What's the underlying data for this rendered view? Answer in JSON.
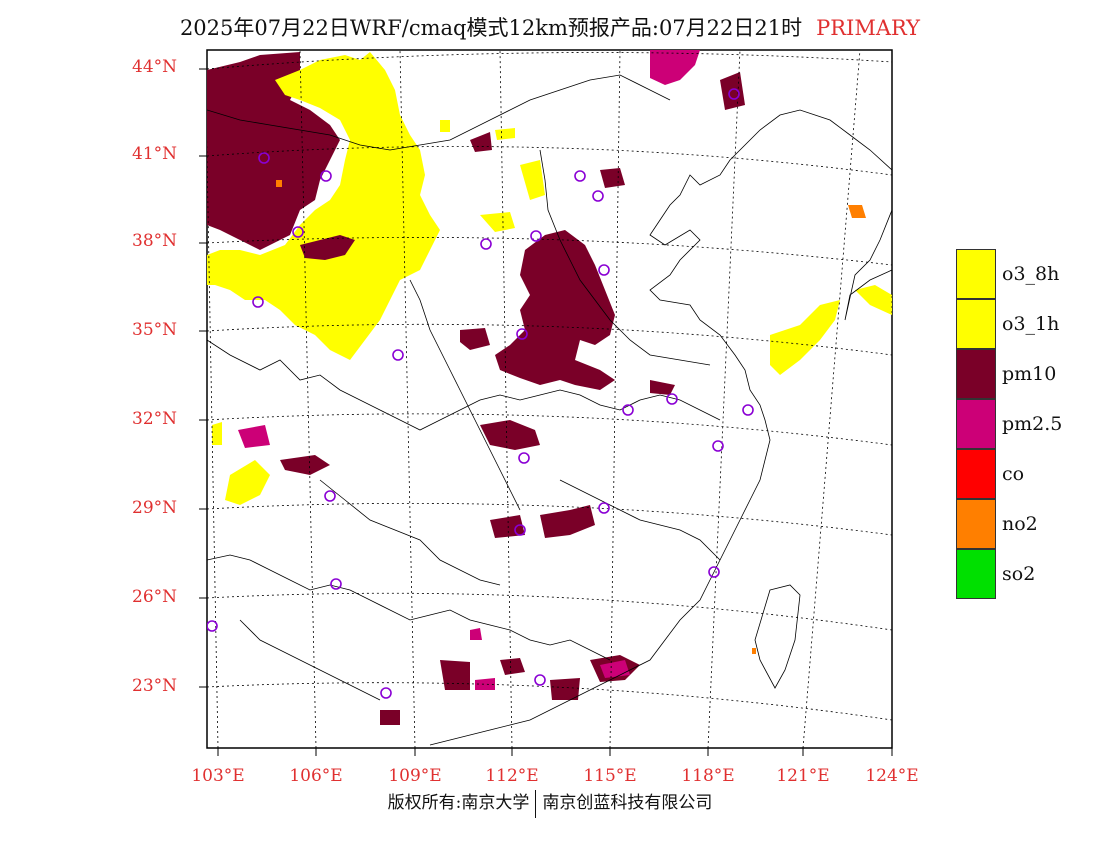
{
  "title": {
    "main": "2025年07月22日WRF/cmaq模式12km预报产品:07月22日21时",
    "tag": "PRIMARY"
  },
  "axes": {
    "lat_labels": [
      "44°N",
      "41°N",
      "38°N",
      "35°N",
      "32°N",
      "29°N",
      "26°N",
      "23°N"
    ],
    "lon_labels": [
      "103°E",
      "106°E",
      "109°E",
      "112°E",
      "115°E",
      "118°E",
      "121°E",
      "124°E"
    ]
  },
  "legend": [
    {
      "label": "o3_8h",
      "color": "#ffff00"
    },
    {
      "label": "o3_1h",
      "color": "#ffff00"
    },
    {
      "label": "pm10",
      "color": "#7a0028"
    },
    {
      "label": "pm2.5",
      "color": "#cc0077"
    },
    {
      "label": "co",
      "color": "#ff0000"
    },
    {
      "label": "no2",
      "color": "#ff7f00"
    },
    {
      "label": "so2",
      "color": "#00e000"
    }
  ],
  "footer": {
    "left": "版权所有:南京大学",
    "right": "南京创蓝科技有限公司"
  }
}
